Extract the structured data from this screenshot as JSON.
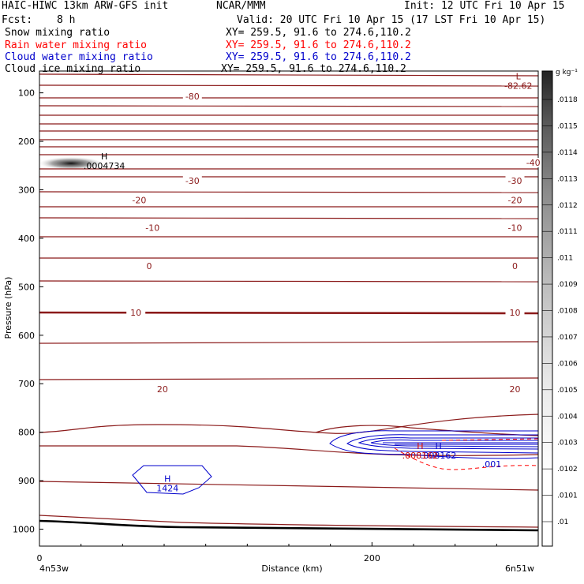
{
  "header": {
    "model": "HAIC-HIWC 13km ARW-GFS init",
    "org": "NCAR/MMM",
    "init": "Init: 12 UTC Fri 10 Apr 15",
    "fcst_label": "Fcst:",
    "fcst_value": "8 h",
    "valid": "Valid: 20 UTC Fri 10 Apr 15 (17 LST Fri 10 Apr 15)",
    "fields": [
      {
        "name": "Snow mixing ratio",
        "xy": "XY= 259.5, 91.6 to 274.6,110.2",
        "color": "#000000"
      },
      {
        "name": "Rain water mixing ratio",
        "xy": "XY= 259.5, 91.6 to 274.6,110.2",
        "color": "#ff0000"
      },
      {
        "name": "Cloud water mixing ratio",
        "xy": "XY= 259.5, 91.6 to 274.6,110.2",
        "color": "#0000cc"
      },
      {
        "name": "Cloud ice mixing ratio",
        "xy": "XY= 259.5, 91.6 to 274.6,110.2",
        "color": "#000000"
      }
    ]
  },
  "chart_data": {
    "type": "cross-section contour",
    "ylabel": "Pressure (hPa)",
    "xlabel": "Distance (km)",
    "x_ticks": [
      0,
      200
    ],
    "x_range_km": [
      0,
      300
    ],
    "y_ticks": [
      100,
      200,
      300,
      400,
      500,
      600,
      700,
      800,
      900,
      1000
    ],
    "y_range_hpa": [
      55,
      1035
    ],
    "x_left_label": "4n53w",
    "x_right_label": "6n51w",
    "temperature_labels": [
      {
        "text": "-80",
        "x_km": 92,
        "p": 107
      },
      {
        "text": "-40",
        "x_km": 297,
        "p": 244
      },
      {
        "text": "-30",
        "x_km": 92,
        "p": 281
      },
      {
        "text": "-30",
        "x_km": 286,
        "p": 281
      },
      {
        "text": "-20",
        "x_km": 60,
        "p": 321
      },
      {
        "text": "-20",
        "x_km": 286,
        "p": 321
      },
      {
        "text": "-10",
        "x_km": 68,
        "p": 378
      },
      {
        "text": "-10",
        "x_km": 286,
        "p": 378
      },
      {
        "text": "0",
        "x_km": 66,
        "p": 457
      },
      {
        "text": "0",
        "x_km": 286,
        "p": 457
      },
      {
        "text": "10",
        "x_km": 58,
        "p": 553
      },
      {
        "text": "10",
        "x_km": 286,
        "p": 553
      },
      {
        "text": "20",
        "x_km": 74,
        "p": 711
      },
      {
        "text": "20",
        "x_km": 286,
        "p": 711
      }
    ],
    "extrema": [
      {
        "text": "L",
        "sub": "-82.62",
        "x_km": 288,
        "p": 72,
        "color": "#8b1a1a"
      },
      {
        "text": "H",
        "sub": ".0004734",
        "x_km": 39,
        "p": 237,
        "color": "#000000"
      },
      {
        "text": "H",
        "sub": "1424",
        "x_km": 77,
        "p": 902,
        "color": "#0000cc"
      },
      {
        "text": "H",
        "sub": ".008162",
        "x_km": 240,
        "p": 835,
        "color": "#0000cc"
      },
      {
        "text": "H",
        "sub": ".008162",
        "x_km": 229,
        "p": 835,
        "color": "#cc0000"
      }
    ],
    "contour_labels": [
      {
        "text": ".001",
        "x_km": 272,
        "p": 872,
        "color": "#0000cc"
      }
    ],
    "colorbar": {
      "unit": "g kg⁻¹",
      "ticks": [
        ".0118",
        ".0115",
        ".0114",
        ".0113",
        ".0112",
        ".0111",
        ".011",
        ".0109",
        ".0108",
        ".0107",
        ".0106",
        ".0105",
        ".0104",
        ".0103",
        ".0102",
        ".0101",
        ".01"
      ]
    }
  }
}
